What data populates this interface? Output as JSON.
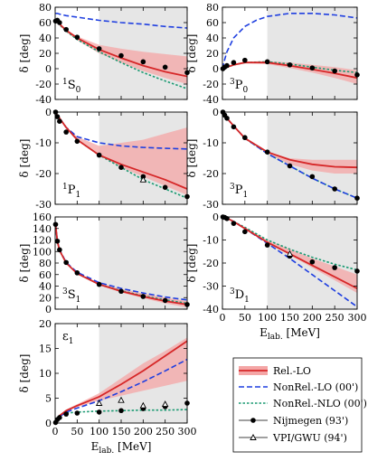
{
  "colors": {
    "rel_lo": "#d62728",
    "rel_lo_band": "#f4a6a6",
    "nonrel_lo": "#1f3fe0",
    "nonrel_nlo": "#1a9a72",
    "data": "#000000",
    "shade": "#e6e6e6"
  },
  "legend": {
    "entries": [
      {
        "key": "rel_lo",
        "label": "Rel.-LO"
      },
      {
        "key": "nonrel_lo",
        "label": "NonRel.-LO (00')"
      },
      {
        "key": "nonrel_nlo",
        "label": "NonRel.-NLO (00')"
      },
      {
        "key": "nijmegen",
        "label": "Nijmegen (93')"
      },
      {
        "key": "vpi",
        "label": "VPI/GWU (94')"
      }
    ]
  },
  "axis_labels": {
    "y": "δ [deg]",
    "x_main": "E",
    "x_sub": "lab.",
    "x_unit": "[MeV]"
  },
  "chart_data": [
    {
      "type": "line",
      "channel": "1S0",
      "label_main": "1",
      "label_letter": "S",
      "label_sub": "0",
      "xlim": [
        0,
        300
      ],
      "ylim": [
        -40,
        80
      ],
      "yticks": [
        -40,
        -20,
        0,
        20,
        40,
        60,
        80
      ],
      "xticks": [
        0,
        50,
        100,
        150,
        200,
        250,
        300
      ],
      "shade_from": 100,
      "rel_lo": {
        "x": [
          1,
          5,
          10,
          25,
          50,
          100,
          150,
          200,
          250,
          300
        ],
        "y": [
          62,
          63,
          58,
          50,
          40,
          25,
          14,
          4,
          -4,
          -10
        ]
      },
      "band": {
        "x": [
          1,
          5,
          10,
          25,
          50,
          100,
          150,
          200,
          250,
          300
        ],
        "lo": [
          62,
          63,
          57,
          48,
          37,
          20,
          8,
          -3,
          -12,
          -20
        ],
        "hi": [
          62,
          63,
          59,
          51,
          42,
          31,
          26,
          22,
          19,
          16
        ]
      },
      "nonrel_lo": {
        "x": [
          1,
          5,
          10,
          25,
          50,
          100,
          150,
          200,
          250,
          300
        ],
        "y": [
          72,
          72,
          71,
          69,
          67,
          63,
          60,
          58,
          55,
          53
        ]
      },
      "nonrel_nlo": {
        "x": [
          1,
          5,
          10,
          25,
          50,
          100,
          150,
          200,
          250,
          300
        ],
        "y": [
          62,
          63,
          57,
          49,
          38,
          22,
          8,
          -5,
          -16,
          -26
        ]
      },
      "nijmegen": {
        "x": [
          1,
          5,
          10,
          25,
          50,
          100,
          150,
          200,
          250,
          300
        ],
        "y": [
          62,
          63,
          60,
          51,
          41,
          26,
          17,
          9,
          2,
          -5
        ]
      },
      "vpi": null
    },
    {
      "type": "line",
      "channel": "3P0",
      "label_main": "3",
      "label_letter": "P",
      "label_sub": "0",
      "xlim": [
        0,
        300
      ],
      "ylim": [
        -40,
        80
      ],
      "yticks": [
        -40,
        -20,
        0,
        20,
        40,
        60,
        80
      ],
      "xticks": [
        0,
        50,
        100,
        150,
        200,
        250,
        300
      ],
      "shade_from": 100,
      "rel_lo": {
        "x": [
          0,
          5,
          10,
          25,
          50,
          100,
          150,
          200,
          250,
          300
        ],
        "y": [
          0,
          1,
          2,
          5,
          8,
          8,
          4,
          -1,
          -6,
          -12
        ]
      },
      "band": {
        "x": [
          0,
          5,
          10,
          25,
          50,
          100,
          150,
          200,
          250,
          300
        ],
        "lo": [
          0,
          1,
          2,
          5,
          7,
          6,
          1,
          -5,
          -12,
          -20
        ],
        "hi": [
          0,
          1,
          3,
          6,
          9,
          10,
          8,
          5,
          2,
          -2
        ]
      },
      "nonrel_lo": {
        "x": [
          0,
          5,
          10,
          25,
          50,
          75,
          100,
          150,
          200,
          250,
          300
        ],
        "y": [
          0,
          12,
          22,
          40,
          55,
          63,
          68,
          72,
          72,
          70,
          66
        ]
      },
      "nonrel_nlo": {
        "x": [
          0,
          5,
          10,
          25,
          50,
          100,
          150,
          200,
          250,
          300
        ],
        "y": [
          0,
          1,
          2,
          5,
          8,
          9,
          6,
          2,
          -2,
          -5
        ]
      },
      "nijmegen": {
        "x": [
          1,
          5,
          10,
          25,
          50,
          100,
          150,
          200,
          250,
          300
        ],
        "y": [
          0,
          2,
          4,
          8,
          11,
          9,
          5,
          1,
          -3,
          -8
        ]
      },
      "vpi": null
    },
    {
      "type": "line",
      "channel": "1P1",
      "label_main": "1",
      "label_letter": "P",
      "label_sub": "1",
      "xlim": [
        0,
        300
      ],
      "ylim": [
        -30,
        0
      ],
      "yticks": [
        -30,
        -20,
        -10,
        0
      ],
      "xticks": [
        0,
        50,
        100,
        150,
        200,
        250,
        300
      ],
      "shade_from": 100,
      "rel_lo": {
        "x": [
          0,
          5,
          10,
          25,
          50,
          100,
          150,
          200,
          250,
          300
        ],
        "y": [
          0,
          -1,
          -2,
          -5,
          -9,
          -14,
          -17,
          -19.5,
          -22,
          -25
        ]
      },
      "band": {
        "x": [
          0,
          5,
          10,
          25,
          50,
          100,
          150,
          200,
          250,
          300
        ],
        "lo": [
          0,
          -1,
          -2,
          -5,
          -9,
          -14,
          -18,
          -21,
          -24,
          -27
        ],
        "hi": [
          0,
          -1,
          -2,
          -5,
          -8,
          -11,
          -10,
          -9,
          -7,
          -5
        ]
      },
      "nonrel_lo": {
        "x": [
          0,
          5,
          10,
          25,
          50,
          100,
          150,
          200,
          250,
          300
        ],
        "y": [
          0,
          -1,
          -2,
          -5,
          -8,
          -10,
          -11,
          -11.5,
          -11.8,
          -12
        ]
      },
      "nonrel_nlo": {
        "x": [
          0,
          5,
          10,
          25,
          50,
          100,
          150,
          200,
          250,
          300
        ],
        "y": [
          0,
          -1,
          -2,
          -5,
          -9,
          -14,
          -18,
          -22,
          -25,
          -28
        ]
      },
      "nijmegen": {
        "x": [
          1,
          5,
          10,
          25,
          50,
          100,
          150,
          200,
          250,
          300
        ],
        "y": [
          0,
          -1.5,
          -3,
          -6.5,
          -9.5,
          -14,
          -18,
          -21,
          -24.5,
          -27.5
        ]
      },
      "vpi": {
        "x": [
          200
        ],
        "y": [
          -22
        ]
      }
    },
    {
      "type": "line",
      "channel": "3P1",
      "label_main": "3",
      "label_letter": "P",
      "label_sub": "1",
      "xlim": [
        0,
        300
      ],
      "ylim": [
        -30,
        0
      ],
      "yticks": [
        -30,
        -20,
        -10,
        0
      ],
      "xticks": [
        0,
        50,
        100,
        150,
        200,
        250,
        300
      ],
      "shade_from": 100,
      "rel_lo": {
        "x": [
          0,
          5,
          10,
          25,
          50,
          100,
          150,
          200,
          250,
          300
        ],
        "y": [
          0,
          -1,
          -2,
          -4.5,
          -8.5,
          -13,
          -15.5,
          -17,
          -17.8,
          -18
        ]
      },
      "band": {
        "x": [
          0,
          5,
          10,
          25,
          50,
          100,
          150,
          200,
          250,
          300
        ],
        "lo": [
          0,
          -1,
          -2,
          -4.5,
          -8.5,
          -13.5,
          -17,
          -19,
          -20,
          -20
        ],
        "hi": [
          0,
          -1,
          -2,
          -4.5,
          -8.5,
          -13,
          -15,
          -15.5,
          -15.5,
          -15.5
        ]
      },
      "nonrel_lo": {
        "x": [
          0,
          5,
          10,
          25,
          50,
          100,
          150,
          200,
          250,
          300
        ],
        "y": [
          0,
          -1,
          -2,
          -4.5,
          -8.5,
          -13.5,
          -17.5,
          -21.5,
          -25,
          -28
        ]
      },
      "nonrel_nlo": {
        "x": [
          0,
          5,
          10,
          25,
          50,
          100,
          150,
          200,
          250,
          300
        ],
        "y": [
          0,
          -1,
          -2,
          -4.5,
          -8.5,
          -13.5,
          -17.5,
          -21.5,
          -25,
          -28
        ]
      },
      "nijmegen": {
        "x": [
          1,
          5,
          10,
          25,
          50,
          100,
          150,
          200,
          250,
          300
        ],
        "y": [
          0,
          -1,
          -2,
          -4.8,
          -8.3,
          -13,
          -17.5,
          -21,
          -25,
          -28
        ]
      },
      "vpi": null
    },
    {
      "type": "line",
      "channel": "3S1",
      "label_main": "3",
      "label_letter": "S",
      "label_sub": "1",
      "xlim": [
        0,
        300
      ],
      "ylim": [
        0,
        160
      ],
      "yticks": [
        0,
        20,
        40,
        60,
        80,
        100,
        120,
        140,
        160
      ],
      "xticks": [
        0,
        50,
        100,
        150,
        200,
        250,
        300
      ],
      "shade_from": 100,
      "rel_lo": {
        "x": [
          1,
          5,
          10,
          25,
          50,
          100,
          150,
          200,
          250,
          300
        ],
        "y": [
          147,
          118,
          102,
          80,
          62,
          43,
          31,
          22,
          14,
          8
        ]
      },
      "band": {
        "x": [
          1,
          5,
          10,
          25,
          50,
          100,
          150,
          200,
          250,
          300
        ],
        "lo": [
          147,
          118,
          102,
          80,
          62,
          42,
          29,
          19,
          10,
          3
        ],
        "hi": [
          147,
          118,
          102,
          80,
          63,
          45,
          35,
          27,
          20,
          14
        ]
      },
      "nonrel_lo": {
        "x": [
          1,
          5,
          10,
          25,
          50,
          100,
          150,
          200,
          250,
          300
        ],
        "y": [
          147,
          118,
          103,
          81,
          64,
          46,
          36,
          28,
          21,
          16
        ]
      },
      "nonrel_nlo": {
        "x": [
          1,
          5,
          10,
          25,
          50,
          100,
          150,
          200,
          250,
          300
        ],
        "y": [
          147,
          118,
          102,
          80,
          62,
          43,
          32,
          23,
          16,
          10
        ]
      },
      "nijmegen": {
        "x": [
          1,
          5,
          10,
          25,
          50,
          100,
          150,
          200,
          250,
          300
        ],
        "y": [
          147,
          118,
          103,
          81,
          63,
          43,
          31,
          22,
          15,
          8
        ]
      },
      "vpi": null
    },
    {
      "type": "line",
      "channel": "3D1",
      "label_main": "3",
      "label_letter": "D",
      "label_sub": "1",
      "xlim": [
        0,
        300
      ],
      "ylim": [
        -40,
        0
      ],
      "yticks": [
        -40,
        -30,
        -20,
        -10,
        0
      ],
      "xticks": [
        0,
        50,
        100,
        150,
        200,
        250,
        300
      ],
      "shade_from": 100,
      "rel_lo": {
        "x": [
          0,
          5,
          10,
          25,
          50,
          100,
          150,
          200,
          250,
          300
        ],
        "y": [
          0,
          -0.2,
          -0.5,
          -2,
          -5,
          -11,
          -16,
          -21,
          -26,
          -31
        ]
      },
      "band": {
        "x": [
          0,
          5,
          10,
          25,
          50,
          100,
          150,
          200,
          250,
          300
        ],
        "lo": [
          0,
          -0.2,
          -0.5,
          -2,
          -5,
          -11,
          -16.5,
          -22,
          -27.5,
          -33
        ],
        "hi": [
          0,
          -0.2,
          -0.5,
          -2,
          -4.5,
          -10,
          -14,
          -18,
          -21.5,
          -25
        ]
      },
      "nonrel_lo": {
        "x": [
          0,
          5,
          10,
          25,
          50,
          100,
          150,
          200,
          250,
          300
        ],
        "y": [
          0,
          -0.2,
          -0.5,
          -2,
          -5,
          -11.5,
          -18,
          -25,
          -32,
          -39
        ]
      },
      "nonrel_nlo": {
        "x": [
          0,
          5,
          10,
          25,
          50,
          100,
          150,
          200,
          250,
          300
        ],
        "y": [
          0,
          -0.2,
          -0.5,
          -2,
          -4.5,
          -10,
          -14,
          -17.5,
          -20.5,
          -23
        ]
      },
      "nijmegen": {
        "x": [
          1,
          5,
          10,
          25,
          50,
          100,
          150,
          200,
          250,
          300
        ],
        "y": [
          0,
          -0.2,
          -0.7,
          -2.8,
          -6.4,
          -12.2,
          -17,
          -19.5,
          -22,
          -23.5
        ]
      },
      "vpi": {
        "x": [
          150
        ],
        "y": [
          -16
        ]
      }
    },
    {
      "type": "line",
      "channel": "e1",
      "label_main": "",
      "label_letter": "ε",
      "label_sub": "1",
      "xlim": [
        0,
        300
      ],
      "ylim": [
        0,
        20
      ],
      "yticks": [
        0,
        5,
        10,
        15,
        20
      ],
      "xticks": [
        0,
        50,
        100,
        150,
        200,
        250,
        300
      ],
      "shade_from": 100,
      "rel_lo": {
        "x": [
          0,
          5,
          10,
          25,
          50,
          100,
          150,
          200,
          250,
          300
        ],
        "y": [
          0,
          1,
          1.5,
          2.5,
          3.5,
          5.3,
          7.8,
          10.5,
          13.5,
          16.5
        ]
      },
      "band": {
        "x": [
          0,
          5,
          10,
          25,
          50,
          100,
          150,
          200,
          250,
          300
        ],
        "lo": [
          0,
          1,
          1.4,
          2.3,
          3.2,
          4.5,
          5.5,
          6.5,
          7.5,
          8.5
        ],
        "hi": [
          0,
          1,
          1.6,
          2.7,
          3.8,
          6.0,
          9.0,
          12.0,
          14.5,
          17.2
        ]
      },
      "nonrel_lo": {
        "x": [
          0,
          5,
          10,
          25,
          50,
          100,
          150,
          200,
          250,
          300
        ],
        "y": [
          0,
          0.8,
          1.3,
          2.2,
          3.0,
          4.5,
          6.3,
          8.3,
          10.5,
          12.8
        ]
      },
      "nonrel_nlo": {
        "x": [
          0,
          5,
          10,
          25,
          50,
          100,
          150,
          200,
          250,
          300
        ],
        "y": [
          0,
          1,
          1.5,
          2.0,
          2.2,
          2.4,
          2.5,
          2.6,
          2.6,
          2.7
        ]
      },
      "nijmegen": {
        "x": [
          1,
          5,
          10,
          25,
          50,
          100,
          150,
          200,
          250,
          300
        ],
        "y": [
          0.1,
          0.7,
          1.1,
          1.8,
          2.0,
          2.2,
          2.5,
          2.9,
          3.3,
          4.0
        ]
      },
      "vpi": {
        "x": [
          100,
          150,
          200,
          250
        ],
        "y": [
          4.0,
          4.6,
          3.5,
          3.8
        ]
      }
    }
  ]
}
